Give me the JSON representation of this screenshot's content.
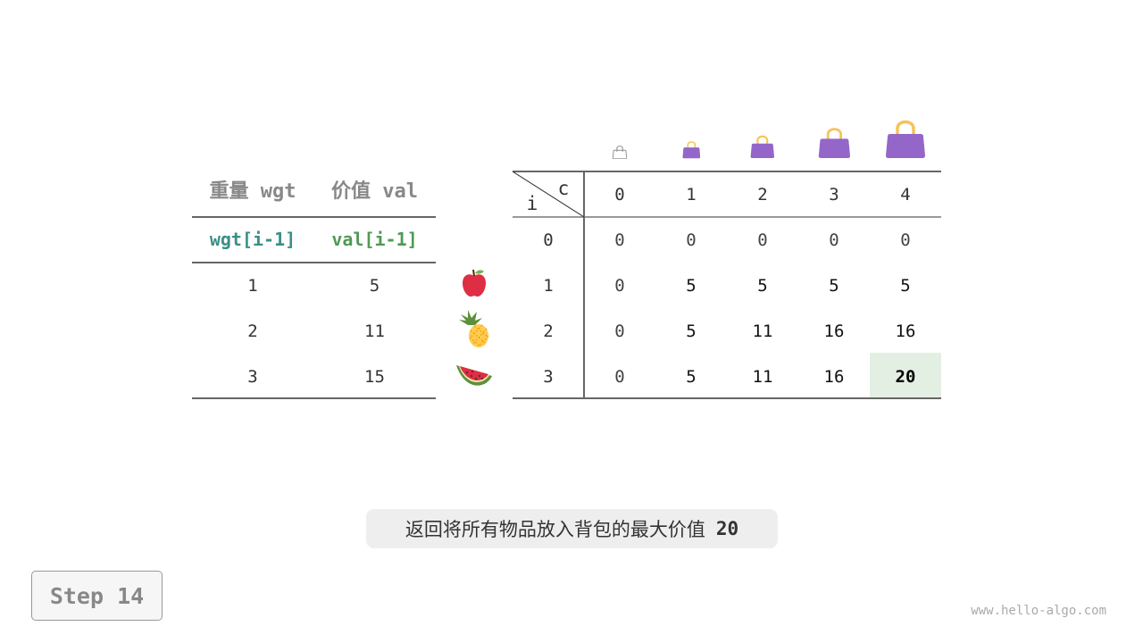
{
  "items_table": {
    "headers": [
      "重量 wgt",
      "价值 val"
    ],
    "subheaders": [
      "wgt[i-1]",
      "val[i-1]"
    ],
    "rows": [
      {
        "wgt": "1",
        "val": "5",
        "icon": "apple-icon"
      },
      {
        "wgt": "2",
        "val": "11",
        "icon": "pineapple-icon"
      },
      {
        "wgt": "3",
        "val": "15",
        "icon": "watermelon-icon"
      }
    ]
  },
  "dp_table": {
    "corner_row_label": "i",
    "corner_col_label": "c",
    "capacities": [
      "0",
      "1",
      "2",
      "3",
      "4"
    ],
    "row_labels": [
      "0",
      "1",
      "2",
      "3"
    ],
    "values": [
      [
        "0",
        "0",
        "0",
        "0",
        "0"
      ],
      [
        "0",
        "5",
        "5",
        "5",
        "5"
      ],
      [
        "0",
        "5",
        "11",
        "16",
        "16"
      ],
      [
        "0",
        "5",
        "11",
        "16",
        "20"
      ]
    ],
    "highlight": {
      "row": 3,
      "col": 4,
      "color": "#e3efe3"
    }
  },
  "colors": {
    "bag": "#9466c9",
    "bag_handle": "#f6c25a",
    "teal": "#3a8f86",
    "green": "#4f9a55"
  },
  "caption": {
    "text": "返回将所有物品放入背包的最大价值",
    "value": "20"
  },
  "step_label": "Step 14",
  "watermark": "www.hello-algo.com"
}
